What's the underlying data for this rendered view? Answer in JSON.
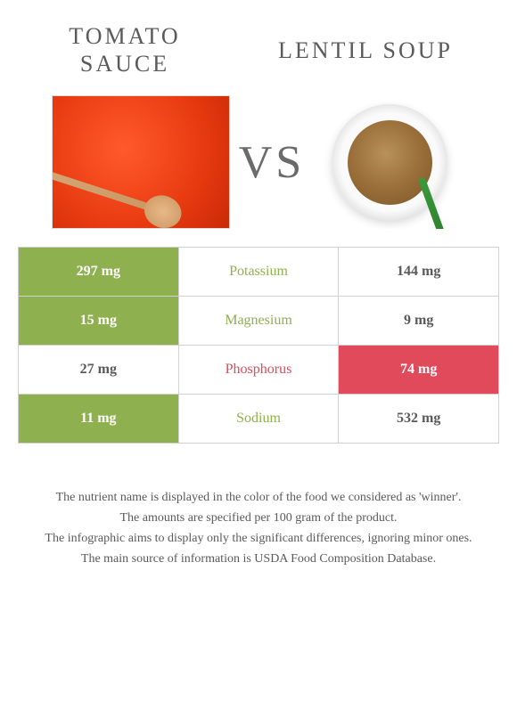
{
  "header": {
    "left_title": "Tomato sauce",
    "right_title": "Lentil soup",
    "vs_label": "VS"
  },
  "colors": {
    "left_winner": "#8fb04e",
    "right_winner": "#e14a5a",
    "neutral_bg": "#ffffff",
    "neutral_text": "#5a5a5a",
    "border": "#d0d0d0"
  },
  "rows": [
    {
      "nutrient": "Potassium",
      "left_value": "297 mg",
      "right_value": "144 mg",
      "winner": "left"
    },
    {
      "nutrient": "Magnesium",
      "left_value": "15 mg",
      "right_value": "9 mg",
      "winner": "left"
    },
    {
      "nutrient": "Phosphorus",
      "left_value": "27 mg",
      "right_value": "74 mg",
      "winner": "right"
    },
    {
      "nutrient": "Sodium",
      "left_value": "11 mg",
      "right_value": "532 mg",
      "winner": "left"
    }
  ],
  "footer": {
    "line1": "The nutrient name is displayed in the color of the food we considered as 'winner'.",
    "line2": "The amounts are specified per 100 gram of the product.",
    "line3": "The infographic aims to display only the significant differences, ignoring minor ones.",
    "line4": "The main source of information is USDA Food Composition Database."
  }
}
